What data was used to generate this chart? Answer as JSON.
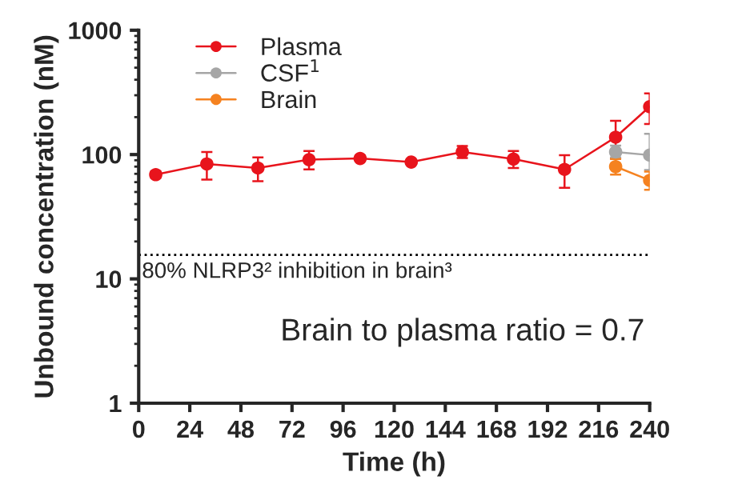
{
  "chart_data": {
    "type": "line",
    "xlabel": "Time (h)",
    "ylabel": "Unbound concentration (nM)",
    "log": "y",
    "xlim": [
      0,
      240
    ],
    "xticks": [
      0,
      24,
      48,
      72,
      96,
      120,
      144,
      168,
      192,
      216,
      240
    ],
    "ylim": [
      1,
      1000
    ],
    "yticks": [
      1,
      10,
      100,
      1000
    ],
    "grid": false,
    "legend": "top left",
    "marker": "circle",
    "line_style": "solid",
    "series": [
      {
        "name": "Plasma",
        "color": "#e8141c",
        "x": [
          8,
          32,
          56,
          80,
          104,
          128,
          152,
          176,
          200,
          224,
          240
        ],
        "values": [
          69,
          84,
          78,
          91,
          93,
          87,
          105,
          92,
          76,
          138,
          243
        ],
        "errors": [
          [
            65,
            73
          ],
          [
            63,
            105
          ],
          [
            61,
            95
          ],
          [
            76,
            107
          ],
          [
            88,
            98
          ],
          [
            84,
            90
          ],
          [
            94,
            117
          ],
          [
            78,
            107
          ],
          [
            54,
            99
          ],
          [
            93,
            187
          ],
          [
            176,
            310
          ]
        ]
      },
      {
        "name": "CSF$^{1}$",
        "color": "#a6a6a6",
        "x": [
          224,
          240
        ],
        "values": [
          105,
          99
        ],
        "errors": [
          [
            95,
            118
          ],
          [
            75,
            147
          ]
        ]
      },
      {
        "name": "Brain",
        "color": "#f58220",
        "x": [
          224,
          240
        ],
        "values": [
          80,
          62
        ],
        "errors": [
          [
            69,
            92
          ],
          [
            52,
            73
          ]
        ]
      }
    ],
    "ref_lines": [
      {
        "axis": "y",
        "value": 15.6,
        "label": "80% NLRP3² inhibition in brain³",
        "color": "#000000",
        "line_style": "dotted"
      }
    ],
    "annotations": [
      "Brain to plasma ratio = 0.7"
    ]
  }
}
